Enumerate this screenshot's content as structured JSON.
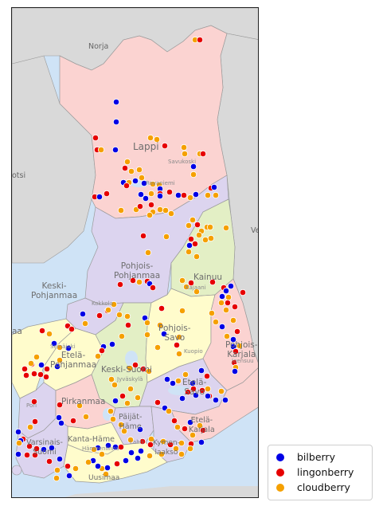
{
  "colors": {
    "water": "#cfe3f6",
    "foreign_land": "#d9d9d9",
    "bilberry": "#0000e6",
    "lingonberry": "#e60000",
    "cloudberry": "#f5a000",
    "lappi_fill": "#fbd3d1",
    "purple_fill": "#dcd4ef",
    "green_fill": "#e3efc5",
    "yellow_fill": "#fffccc"
  },
  "map": {
    "countries": {
      "norway": "Norja",
      "sweden_partial": "otsi",
      "russia_partial": "Ve"
    },
    "places": [
      {
        "id": "savukoski",
        "text": "Savukoski"
      },
      {
        "id": "rovaniemi",
        "text": "Rovaniemi"
      },
      {
        "id": "jyvaskyla",
        "text": "Jyväskylä"
      },
      {
        "id": "seinajoki",
        "text": "Seinäjoki"
      },
      {
        "id": "pori",
        "text": "Pori"
      },
      {
        "id": "kuopio",
        "text": "Kuopio"
      },
      {
        "id": "kokkola",
        "text": "Kokkola"
      },
      {
        "id": "kajaani",
        "text": "Kajaani"
      },
      {
        "id": "hameenlinna",
        "text": "Hämeenlinna"
      },
      {
        "id": "lahti",
        "text": "Lahti"
      },
      {
        "id": "joensuu",
        "text": "Joensuu"
      }
    ],
    "regions": [
      {
        "id": "lappi",
        "text": "Lappi"
      },
      {
        "id": "pohjois-pohjanmaa",
        "text": "Pohjois-\nPohjanmaa"
      },
      {
        "id": "kainuu",
        "text": "Kainuu"
      },
      {
        "id": "keski-pohjanmaa",
        "text": "Keski-\nPohjanmaa"
      },
      {
        "id": "pohjois-savo",
        "text": "Pohjois-\nSavo"
      },
      {
        "id": "pohjois-karjala",
        "text": "Pohjois-\nKarjala"
      },
      {
        "id": "etela-pohjanmaa",
        "text": "Etelä-\nPohjanmaa"
      },
      {
        "id": "keski-suomi",
        "text": "Keski-Suomi"
      },
      {
        "id": "etela-savo",
        "text": "Etelä-\nSavo"
      },
      {
        "id": "pirkanmaa",
        "text": "Pirkanmaa"
      },
      {
        "id": "etela-karjala",
        "text": "Etelä-\nKarjala"
      },
      {
        "id": "paijat-hame",
        "text": "Päijät-\nHäme"
      },
      {
        "id": "kanta-hame",
        "text": "Kanta-Häme"
      },
      {
        "id": "varsinais-suomi",
        "text": "Varsinais-\nSuomi"
      },
      {
        "id": "kymenlaakso",
        "text": "Kymen-\nlaakso"
      },
      {
        "id": "satakunta",
        "text": "aa"
      },
      {
        "id": "uusimaa",
        "text": "Uusimaa"
      }
    ]
  },
  "legend": {
    "items": [
      {
        "label": "bilberry",
        "color": "#0000e6"
      },
      {
        "label": "lingonberry",
        "color": "#e60000"
      },
      {
        "label": "cloudberry",
        "color": "#f5a000"
      }
    ]
  }
}
